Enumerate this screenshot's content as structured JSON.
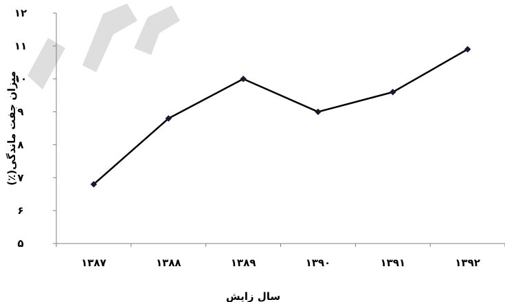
{
  "chart_data": {
    "type": "line",
    "categories": [
      "۱۳۸۷",
      "۱۳۸۸",
      "۱۳۸۹",
      "۱۳۹۰",
      "۱۳۹۱",
      "۱۳۹۲"
    ],
    "x": [
      1387,
      1388,
      1389,
      1390,
      1391,
      1392
    ],
    "series": [
      {
        "values": [
          6.8,
          8.8,
          10.0,
          9.0,
          9.6,
          10.9
        ]
      }
    ],
    "title": "",
    "xlabel": "سال زایش",
    "ylabel": "میزان جفت ماندگی(٪)",
    "ylim": [
      5,
      12
    ],
    "yticks": [
      5,
      6,
      7,
      8,
      9,
      10,
      11,
      12
    ],
    "ytick_labels": [
      "۵",
      "۶",
      "۷",
      "۸",
      "۹",
      "۱۰",
      "۱۱",
      "۱۲"
    ],
    "grid": false,
    "legend": "none",
    "line_color": "#000000",
    "marker": "diamond",
    "marker_color": "#1a1a2e",
    "watermark_color": "#4a4a4a"
  }
}
